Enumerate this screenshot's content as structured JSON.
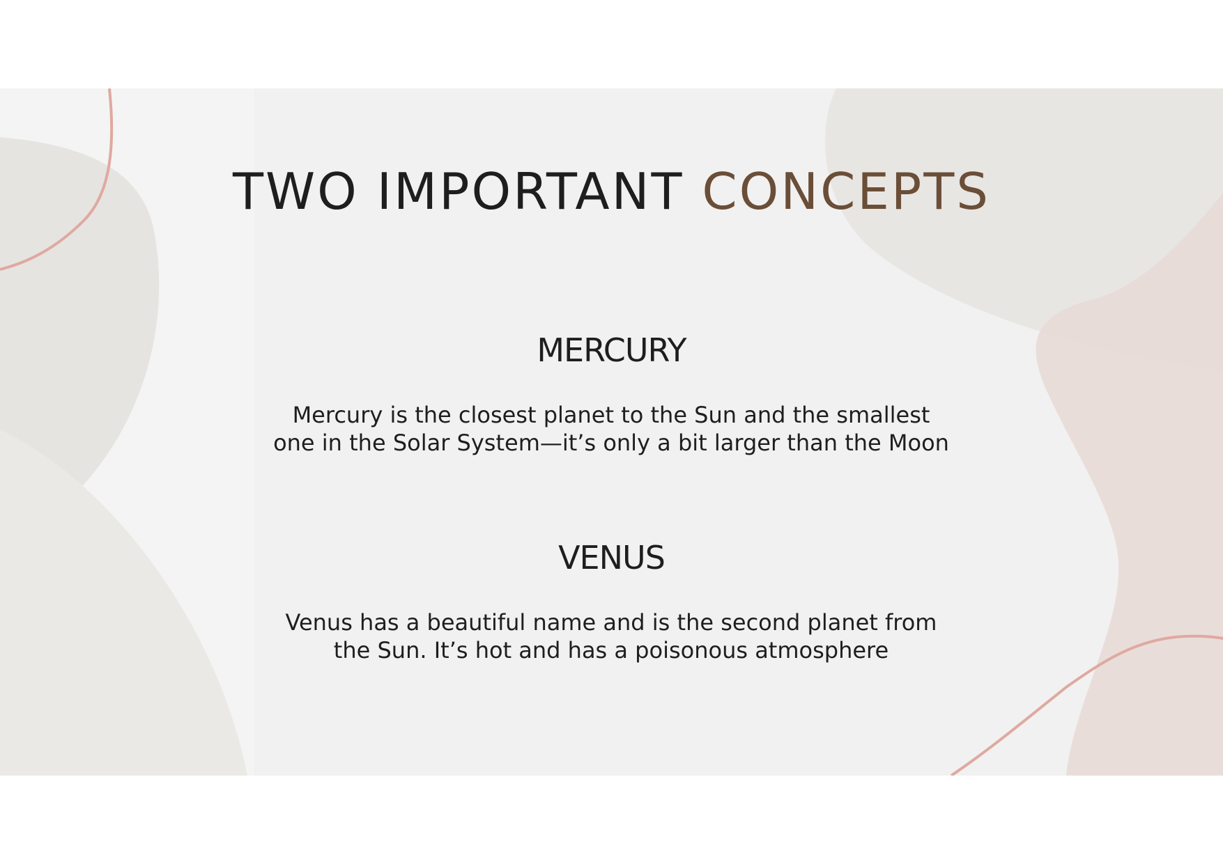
{
  "slide": {
    "title_part1": "TWO IMPORTANT",
    "title_part2": "CONCEPTS",
    "concepts": [
      {
        "title": "MERCURY",
        "line1": "Mercury is the closest planet to the Sun and the smallest",
        "line2": "one in the Solar System—it’s only a bit larger than the Moon"
      },
      {
        "title": "VENUS",
        "line1": "Venus has a beautiful name and is the second planet from",
        "line2": "the Sun. It’s hot and has a poisonous atmosphere"
      }
    ]
  },
  "colors": {
    "background": "#f1f1f1",
    "title": "#1e1e1e",
    "accent": "#6b4e38",
    "blob_gray": "#e4e2df",
    "blob_pink": "#e9dbd8",
    "curve_line": "#dfa9a0"
  }
}
